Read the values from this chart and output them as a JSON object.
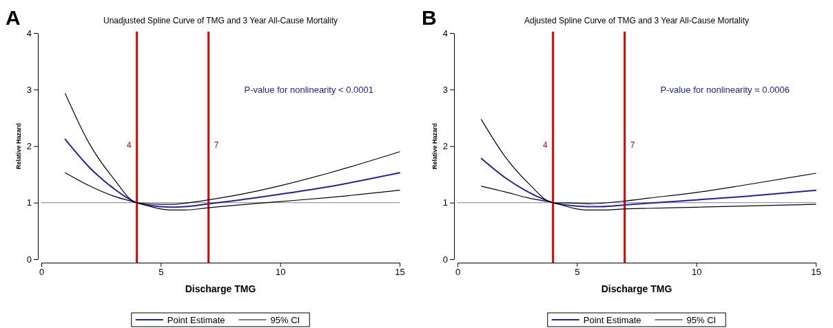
{
  "chart_data": [
    {
      "type": "line",
      "title": "Unadjusted Spline Curve of TMG and 3 Year All-Cause Mortality",
      "xlabel": "Discharge TMG",
      "ylabel": "Relative Hazard",
      "annotations": [
        "A",
        "P-value for nonlinearity < 0.0001"
      ],
      "x": [
        1,
        2,
        3,
        4,
        5,
        5.5,
        6,
        7,
        8,
        10,
        12,
        15
      ],
      "series": [
        {
          "name": "Point Estimate",
          "color": "#2020b0",
          "values": [
            2.12,
            1.63,
            1.26,
            1.0,
            0.93,
            0.92,
            0.93,
            0.98,
            1.03,
            1.15,
            1.28,
            1.53
          ]
        },
        {
          "name": "95% CI",
          "color": "#000000",
          "values": [
            2.93,
            2.05,
            1.44,
            1.0,
            0.97,
            0.97,
            0.99,
            1.05,
            1.12,
            1.3,
            1.52,
            1.9
          ]
        },
        {
          "color": "#000000",
          "values": [
            1.53,
            1.3,
            1.12,
            1.0,
            0.89,
            0.87,
            0.87,
            0.91,
            0.95,
            1.02,
            1.09,
            1.22
          ]
        }
      ],
      "xlim": [
        0,
        15
      ],
      "xticks": [
        0,
        5,
        10,
        15
      ],
      "ylim": [
        0,
        4
      ],
      "yticks": [
        0,
        1,
        2,
        3,
        4
      ],
      "ref_lines": [
        {
          "axis": "y",
          "value": 1,
          "color": "#808080"
        },
        {
          "axis": "x",
          "value": 4,
          "label": "4",
          "color": "#e00000"
        },
        {
          "axis": "x",
          "value": 7,
          "label": "7",
          "color": "#e00000"
        }
      ],
      "legend": "bottom",
      "grid": false,
      "marker": "none",
      "line_style": "solid"
    },
    {
      "type": "line",
      "title": "Adjusted Spline Curve of TMG and 3 Year All-Cause Mortality",
      "xlabel": "Discharge TMG",
      "ylabel": "Relative Hazard",
      "annotations": [
        "B",
        "P-value for nonlinearity = 0.0006"
      ],
      "x": [
        1,
        2,
        3,
        4,
        5,
        5.5,
        6,
        7,
        8,
        10,
        12,
        15
      ],
      "series": [
        {
          "name": "Point Estimate",
          "color": "#2020b0",
          "values": [
            1.78,
            1.44,
            1.18,
            1.0,
            0.94,
            0.93,
            0.93,
            0.96,
            0.99,
            1.05,
            1.11,
            1.22
          ]
        },
        {
          "name": "95% CI",
          "color": "#000000",
          "values": [
            2.47,
            1.81,
            1.33,
            1.0,
            0.99,
            0.98,
            0.99,
            1.03,
            1.08,
            1.18,
            1.31,
            1.52
          ]
        },
        {
          "color": "#000000",
          "values": [
            1.29,
            1.19,
            1.08,
            1.0,
            0.89,
            0.87,
            0.87,
            0.89,
            0.9,
            0.92,
            0.94,
            0.97
          ]
        }
      ],
      "xlim": [
        0,
        15
      ],
      "xticks": [
        0,
        5,
        10,
        15
      ],
      "ylim": [
        0,
        4
      ],
      "yticks": [
        0,
        1,
        2,
        3,
        4
      ],
      "ref_lines": [
        {
          "axis": "y",
          "value": 1,
          "color": "#808080"
        },
        {
          "axis": "x",
          "value": 4,
          "label": "4",
          "color": "#e00000"
        },
        {
          "axis": "x",
          "value": 7,
          "label": "7",
          "color": "#e00000"
        }
      ],
      "legend": "bottom",
      "grid": false,
      "marker": "none",
      "line_style": "solid"
    }
  ]
}
